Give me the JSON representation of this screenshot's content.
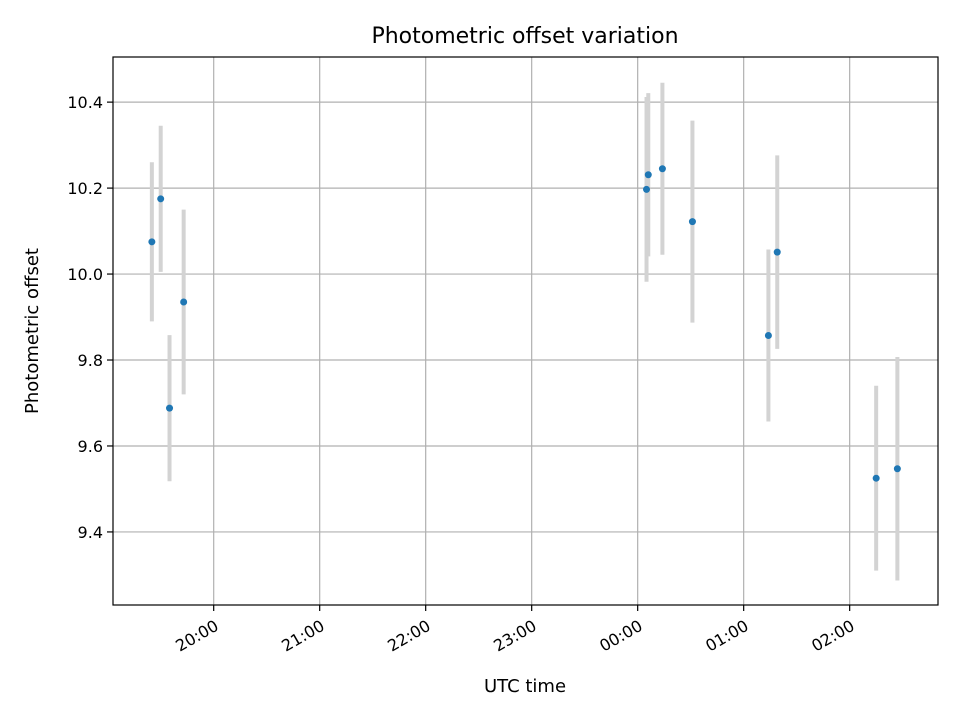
{
  "chart_data": {
    "type": "scatter",
    "title": "Photometric offset variation",
    "xlabel": "UTC time",
    "ylabel": "Photometric offset",
    "x_axis_type": "time",
    "xlim": [
      "19:03",
      "02:50"
    ],
    "ylim": [
      9.23,
      10.505
    ],
    "x_ticks": [
      "20:00",
      "21:00",
      "22:00",
      "23:00",
      "00:00",
      "01:00",
      "02:00"
    ],
    "y_ticks": [
      9.4,
      9.6,
      9.8,
      10.0,
      10.2,
      10.4
    ],
    "y_tick_labels": [
      "9.4",
      "9.6",
      "9.8",
      "10.0",
      "10.2",
      "10.4"
    ],
    "grid": true,
    "x_tick_rotation": "30deg",
    "points": [
      {
        "time": "19:25",
        "y": 10.075,
        "err": 0.185
      },
      {
        "time": "19:30",
        "y": 10.175,
        "err": 0.17
      },
      {
        "time": "19:35",
        "y": 9.688,
        "err": 0.17
      },
      {
        "time": "19:43",
        "y": 9.935,
        "err": 0.215
      },
      {
        "time": "00:05",
        "y": 10.197,
        "err": 0.215
      },
      {
        "time": "00:06",
        "y": 10.231,
        "err": 0.19
      },
      {
        "time": "00:14",
        "y": 10.245,
        "err": 0.2
      },
      {
        "time": "00:31",
        "y": 10.122,
        "err": 0.235
      },
      {
        "time": "01:14",
        "y": 9.857,
        "err": 0.2
      },
      {
        "time": "01:19",
        "y": 10.051,
        "err": 0.225
      },
      {
        "time": "02:15",
        "y": 9.525,
        "err": 0.215
      },
      {
        "time": "02:27",
        "y": 9.547,
        "err": 0.26
      }
    ],
    "colors": {
      "point": "#1f77b4",
      "errorbar": "#d3d3d3",
      "grid": "#b0b0b0",
      "axes": "#000000"
    }
  }
}
